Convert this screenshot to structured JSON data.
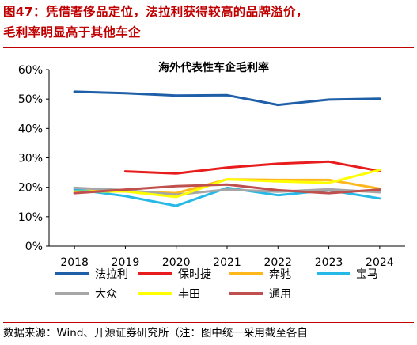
{
  "figure": {
    "title_line1": "图47：凭借奢侈品定位，法拉利获得较高的品牌溢价，",
    "title_line2": "毛利率明显高于其他车企",
    "source": "数据来源：Wind、开源证券研究所（注：图中统一采用截至各自"
  },
  "chart_data": {
    "type": "line",
    "title": "海外代表性车企毛利率",
    "xlabel": "",
    "ylabel": "",
    "categories": [
      "2018",
      "2019",
      "2020",
      "2021",
      "2022",
      "2023",
      "2024"
    ],
    "ylim": [
      0,
      60
    ],
    "yticks": [
      0,
      10,
      20,
      30,
      40,
      50,
      60
    ],
    "ytick_labels": [
      "0%",
      "10%",
      "20%",
      "30%",
      "40%",
      "50%",
      "60%"
    ],
    "grid": false,
    "legend_position": "bottom",
    "series": [
      {
        "name": "法拉利",
        "color": "#1f5fa8",
        "values": [
          52.5,
          52.0,
          51.2,
          51.3,
          48.0,
          49.8,
          50.1
        ]
      },
      {
        "name": "保时捷",
        "color": "#e81c1c",
        "values": [
          null,
          25.4,
          24.7,
          26.7,
          28.0,
          28.7,
          25.5
        ]
      },
      {
        "name": "奔驰",
        "color": "#ffb81c",
        "values": [
          18.8,
          18.7,
          18.0,
          22.7,
          22.5,
          22.5,
          19.5
        ]
      },
      {
        "name": "宝马",
        "color": "#26b8e6",
        "values": [
          19.3,
          17.0,
          13.7,
          19.8,
          17.3,
          19.0,
          16.2
        ]
      },
      {
        "name": "大众",
        "color": "#a6a6a6",
        "values": [
          19.8,
          19.0,
          17.5,
          19.2,
          18.5,
          19.3,
          18.3
        ]
      },
      {
        "name": "丰田",
        "color": "#ffff00",
        "values": [
          18.5,
          18.6,
          16.7,
          22.7,
          22.0,
          21.5,
          25.9
        ]
      },
      {
        "name": "通用",
        "color": "#c0504d",
        "values": [
          18.0,
          19.2,
          20.4,
          20.9,
          19.0,
          18.0,
          19.2
        ]
      }
    ]
  }
}
